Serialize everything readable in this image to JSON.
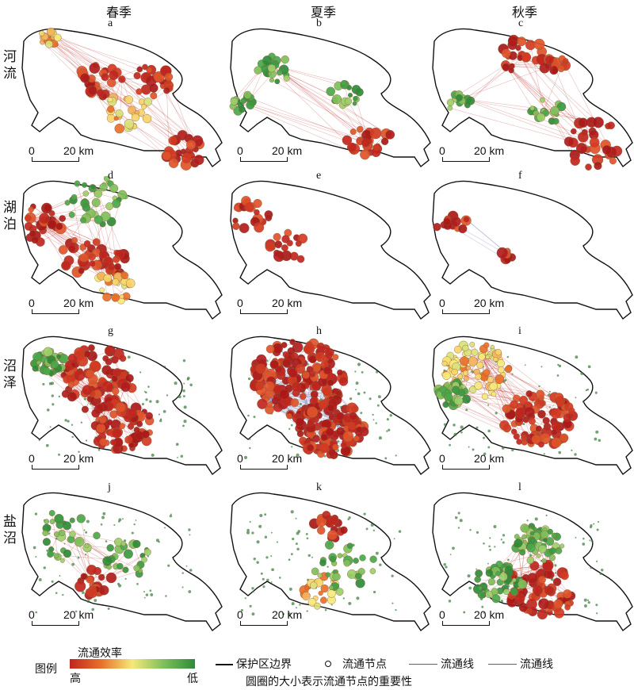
{
  "columns": [
    "春季",
    "夏季",
    "秋季"
  ],
  "rows": [
    "河流",
    "湖泊",
    "沼泽",
    "盐沼"
  ],
  "panels": [
    "a",
    "b",
    "c",
    "d",
    "e",
    "f",
    "g",
    "h",
    "i",
    "j",
    "k",
    "l"
  ],
  "scale_bar": {
    "zero": "0",
    "label": "20 km"
  },
  "legend": {
    "title": "图例",
    "colorbar_title": "流通效率",
    "high": "高",
    "low": "低",
    "boundary": "保护区边界",
    "node": "流通节点",
    "line1": "流通线",
    "line2": "流通线",
    "size_note": "圆圈的大小表示流通节点的重要性"
  },
  "colors": {
    "high": "#c0261e",
    "mid": "#f5e97a",
    "low": "#2e8b3a",
    "line_red": "#c03a3a",
    "line_blue": "#5a5aa8"
  }
}
